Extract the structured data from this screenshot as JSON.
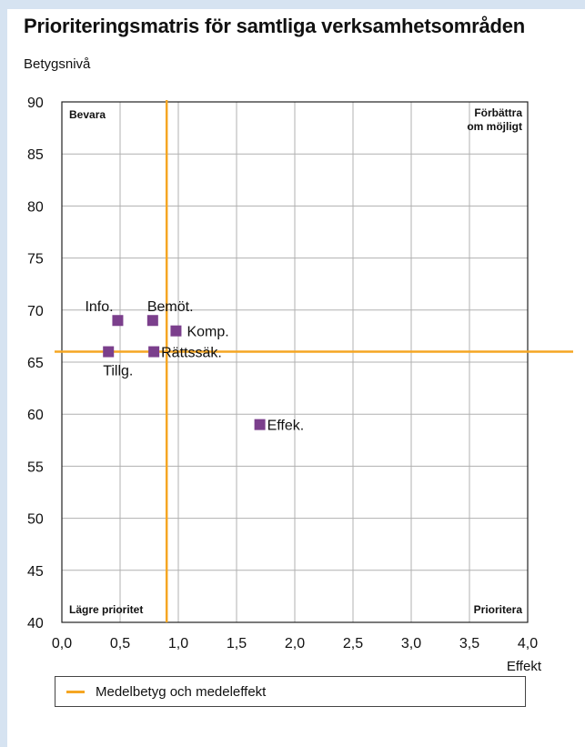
{
  "chart_data": {
    "type": "scatter",
    "title": "Prioriteringsmatris för samtliga verksamhetsområden",
    "ylabel": "Betygsnivå",
    "xlabel": "Effekt",
    "xlim": [
      0.0,
      4.0
    ],
    "ylim": [
      40,
      90
    ],
    "xticks": [
      0.0,
      0.5,
      1.0,
      1.5,
      2.0,
      2.5,
      3.0,
      3.5,
      4.0
    ],
    "yticks": [
      40,
      45,
      50,
      55,
      60,
      65,
      70,
      75,
      80,
      85,
      90
    ],
    "xtick_labels": [
      "0,0",
      "0,5",
      "1,0",
      "1,5",
      "2,0",
      "2,5",
      "3,0",
      "3,5",
      "4,0"
    ],
    "ytick_labels": [
      "40",
      "45",
      "50",
      "55",
      "60",
      "65",
      "70",
      "75",
      "80",
      "85",
      "90"
    ],
    "grid": true,
    "points": [
      {
        "label": "Info.",
        "x": 0.48,
        "y": 69
      },
      {
        "label": "Bemöt.",
        "x": 0.78,
        "y": 69
      },
      {
        "label": "Komp.",
        "x": 0.98,
        "y": 68
      },
      {
        "label": "Tillg.",
        "x": 0.4,
        "y": 66
      },
      {
        "label": "Rättssäk.",
        "x": 0.79,
        "y": 66
      },
      {
        "label": "Effek.",
        "x": 1.7,
        "y": 59
      }
    ],
    "reference_lines": {
      "x": 0.9,
      "y": 66,
      "label": "Medelbetyg och medeleffekt"
    },
    "quadrants": {
      "top_left": "Bevara",
      "top_right": [
        "Förbättra",
        "om möjligt"
      ],
      "bottom_left": "Lägre prioritet",
      "bottom_right": "Prioritera"
    },
    "colors": {
      "point": "#7b3f8c",
      "reference": "#f5a623",
      "grid": "#b0b0b0"
    }
  }
}
